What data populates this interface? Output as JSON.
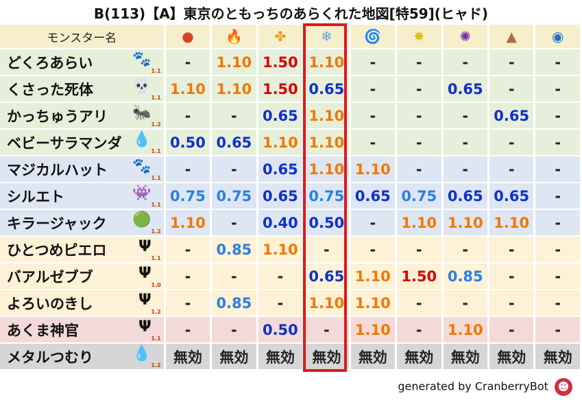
{
  "title": "B(113)【A】東京のともっちのあらくれた地図[特59](ヒャド)",
  "header": {
    "name_col": "モンスター名",
    "elements": [
      {
        "icon": "fire-ball-icon",
        "glyph": "●",
        "color": "#d8402a"
      },
      {
        "icon": "flame-icon",
        "glyph": "🔥",
        "color": "#e8502a"
      },
      {
        "icon": "explosion-icon",
        "glyph": "✤",
        "color": "#e8a020"
      },
      {
        "icon": "ice-icon",
        "glyph": "❄",
        "color": "#5aa0e8"
      },
      {
        "icon": "tornado-icon",
        "glyph": "🌀",
        "color": "#58a878"
      },
      {
        "icon": "lightning-icon",
        "glyph": "✸",
        "color": "#d8c020"
      },
      {
        "icon": "dark-icon",
        "glyph": "✺",
        "color": "#7030a0"
      },
      {
        "icon": "earth-icon",
        "glyph": "▲",
        "color": "#a87040"
      },
      {
        "icon": "water-wave-icon",
        "glyph": "◉",
        "color": "#2070c8"
      }
    ]
  },
  "rows": [
    {
      "name": "どくろあらい",
      "icon": "paw-icon",
      "glyph": "🐾",
      "level": "1.1",
      "bg": "#e6efda",
      "values": [
        [
          "-",
          "dash"
        ],
        [
          "1.10",
          "or"
        ],
        [
          "1.50",
          "rd"
        ],
        [
          "1.10",
          "or"
        ],
        [
          "-",
          "dash"
        ],
        [
          "-",
          "dash"
        ],
        [
          "-",
          "dash"
        ],
        [
          "-",
          "dash"
        ],
        [
          "-",
          "dash"
        ]
      ]
    },
    {
      "name": "くさった死体",
      "icon": "skull-icon",
      "glyph": "💀",
      "level": "1.1",
      "bg": "#e6efda",
      "values": [
        [
          "1.10",
          "or"
        ],
        [
          "1.10",
          "or"
        ],
        [
          "1.50",
          "rd"
        ],
        [
          "0.65",
          "bl"
        ],
        [
          "-",
          "dash"
        ],
        [
          "-",
          "dash"
        ],
        [
          "0.65",
          "bl"
        ],
        [
          "-",
          "dash"
        ],
        [
          "-",
          "dash"
        ]
      ]
    },
    {
      "name": "かっちゅうアリ",
      "icon": "bug-icon",
      "glyph": "🐜",
      "level": "1.2",
      "bg": "#e6efda",
      "values": [
        [
          "-",
          "dash"
        ],
        [
          "-",
          "dash"
        ],
        [
          "0.65",
          "bl"
        ],
        [
          "1.10",
          "or"
        ],
        [
          "-",
          "dash"
        ],
        [
          "-",
          "dash"
        ],
        [
          "-",
          "dash"
        ],
        [
          "0.65",
          "bl"
        ],
        [
          "-",
          "dash"
        ]
      ]
    },
    {
      "name": "ベビーサラマンダ",
      "icon": "water-drop-icon",
      "glyph": "💧",
      "level": "1.1",
      "bg": "#e6efda",
      "values": [
        [
          "0.50",
          "bl"
        ],
        [
          "0.65",
          "bl"
        ],
        [
          "1.10",
          "or"
        ],
        [
          "1.10",
          "or"
        ],
        [
          "-",
          "dash"
        ],
        [
          "-",
          "dash"
        ],
        [
          "-",
          "dash"
        ],
        [
          "-",
          "dash"
        ],
        [
          "-",
          "dash"
        ]
      ]
    },
    {
      "name": "マジカルハット",
      "icon": "paw-icon",
      "glyph": "🐾",
      "level": "1.1",
      "bg": "#dde6f2",
      "values": [
        [
          "-",
          "dash"
        ],
        [
          "-",
          "dash"
        ],
        [
          "0.65",
          "bl"
        ],
        [
          "1.10",
          "or"
        ],
        [
          "1.10",
          "or"
        ],
        [
          "-",
          "dash"
        ],
        [
          "-",
          "dash"
        ],
        [
          "-",
          "dash"
        ],
        [
          "-",
          "dash"
        ]
      ]
    },
    {
      "name": "シルエト",
      "icon": "ghost-icon",
      "glyph": "👾",
      "level": "1.1",
      "bg": "#dde6f2",
      "values": [
        [
          "0.75",
          "lb"
        ],
        [
          "0.75",
          "lb"
        ],
        [
          "0.65",
          "bl"
        ],
        [
          "0.75",
          "lb"
        ],
        [
          "0.65",
          "bl"
        ],
        [
          "0.75",
          "lb"
        ],
        [
          "0.65",
          "bl"
        ],
        [
          "0.65",
          "bl"
        ],
        [
          "-",
          "dash"
        ]
      ]
    },
    {
      "name": "キラージャック",
      "icon": "slime-icon",
      "glyph": "🟢",
      "level": "1.2",
      "bg": "#dde6f2",
      "values": [
        [
          "1.10",
          "or"
        ],
        [
          "-",
          "dash"
        ],
        [
          "0.40",
          "bl"
        ],
        [
          "0.50",
          "bl"
        ],
        [
          "-",
          "dash"
        ],
        [
          "1.10",
          "or"
        ],
        [
          "1.10",
          "or"
        ],
        [
          "1.10",
          "or"
        ],
        [
          "-",
          "dash"
        ]
      ]
    },
    {
      "name": "ひとつめピエロ",
      "icon": "trident-icon",
      "glyph": "Ψ",
      "level": "1.1",
      "bg": "#fdf1d6",
      "values": [
        [
          "-",
          "dash"
        ],
        [
          "0.85",
          "lb"
        ],
        [
          "1.10",
          "or"
        ],
        [
          "-",
          "dash"
        ],
        [
          "-",
          "dash"
        ],
        [
          "-",
          "dash"
        ],
        [
          "-",
          "dash"
        ],
        [
          "-",
          "dash"
        ],
        [
          "-",
          "dash"
        ]
      ]
    },
    {
      "name": "バアルゼブブ",
      "icon": "trident-icon",
      "glyph": "Ψ",
      "level": "1.0",
      "bg": "#fdf1d6",
      "values": [
        [
          "-",
          "dash"
        ],
        [
          "-",
          "dash"
        ],
        [
          "-",
          "dash"
        ],
        [
          "0.65",
          "bl"
        ],
        [
          "1.10",
          "or"
        ],
        [
          "1.50",
          "rd"
        ],
        [
          "0.85",
          "lb"
        ],
        [
          "-",
          "dash"
        ],
        [
          "-",
          "dash"
        ]
      ]
    },
    {
      "name": "よろいのきし",
      "icon": "trident-icon",
      "glyph": "Ψ",
      "level": "1.2",
      "bg": "#fdf1d6",
      "values": [
        [
          "-",
          "dash"
        ],
        [
          "0.85",
          "lb"
        ],
        [
          "-",
          "dash"
        ],
        [
          "1.10",
          "or"
        ],
        [
          "1.10",
          "or"
        ],
        [
          "-",
          "dash"
        ],
        [
          "-",
          "dash"
        ],
        [
          "-",
          "dash"
        ],
        [
          "-",
          "dash"
        ]
      ]
    },
    {
      "name": "あくま神官",
      "icon": "trident-icon",
      "glyph": "Ψ",
      "level": "1.1",
      "bg": "#f4d9d9",
      "values": [
        [
          "-",
          "dash"
        ],
        [
          "-",
          "dash"
        ],
        [
          "0.50",
          "bl"
        ],
        [
          "-",
          "dash"
        ],
        [
          "1.10",
          "or"
        ],
        [
          "-",
          "dash"
        ],
        [
          "1.10",
          "or"
        ],
        [
          "-",
          "dash"
        ],
        [
          "-",
          "dash"
        ]
      ]
    },
    {
      "name": "メタルつむり",
      "icon": "metal-slime-icon",
      "glyph": "💧",
      "level": "1.2",
      "bg": "#d6d6d6",
      "values": [
        [
          "無効",
          "dash"
        ],
        [
          "無効",
          "dash"
        ],
        [
          "無効",
          "dash"
        ],
        [
          "無効",
          "dash"
        ],
        [
          "無効",
          "dash"
        ],
        [
          "無効",
          "dash"
        ],
        [
          "無効",
          "dash"
        ],
        [
          "無効",
          "dash"
        ],
        [
          "無効",
          "dash"
        ]
      ]
    }
  ],
  "footer": {
    "text": "generated by CranberryBot",
    "icon": "cranberry-bot-icon",
    "glyph": "☻"
  }
}
